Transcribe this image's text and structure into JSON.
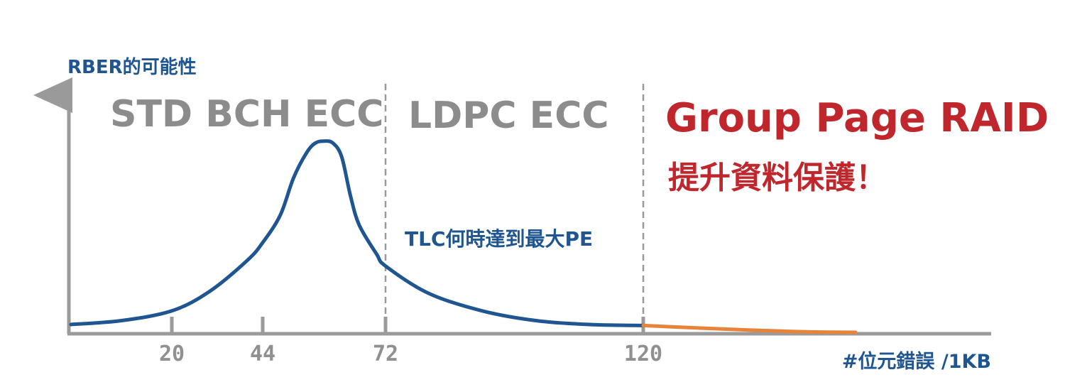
{
  "chart_data": {
    "type": "line",
    "ylabel": "RBER的可能性",
    "xlabel": "#位元錯誤 /1KB",
    "x_ticks": [
      {
        "value": 20,
        "label": "20"
      },
      {
        "value": 44,
        "label": "44"
      },
      {
        "value": 72,
        "label": "72"
      },
      {
        "value": 120,
        "label": "120"
      }
    ],
    "boundaries": [
      72,
      120
    ],
    "regions": [
      {
        "label": "STD BCH ECC",
        "color": "#8c8c8c"
      },
      {
        "label": "LDPC ECC",
        "color": "#8c8c8c"
      },
      {
        "label": "Group Page RAID",
        "sublabel": "提升資料保護！",
        "color": "#c0272d"
      }
    ],
    "annotation": "TLC何時達到最大PE",
    "series": [
      {
        "color": "#1f5590",
        "points": [
          [
            0,
            0.04
          ],
          [
            10,
            0.06
          ],
          [
            20,
            0.11
          ],
          [
            30,
            0.21
          ],
          [
            40,
            0.37
          ],
          [
            44,
            0.46
          ],
          [
            48,
            0.6
          ],
          [
            51,
            0.79
          ],
          [
            54,
            0.92
          ],
          [
            56,
            0.97
          ],
          [
            58,
            0.98
          ],
          [
            60,
            0.97
          ],
          [
            62,
            0.9
          ],
          [
            64,
            0.7
          ],
          [
            66,
            0.55
          ],
          [
            70,
            0.4
          ],
          [
            72,
            0.34
          ],
          [
            80,
            0.2
          ],
          [
            90,
            0.11
          ],
          [
            100,
            0.06
          ],
          [
            110,
            0.04
          ],
          [
            120,
            0.035
          ]
        ]
      },
      {
        "color": "#e8833a",
        "points": [
          [
            120,
            0.035
          ],
          [
            130,
            0.025
          ],
          [
            140,
            0.016
          ],
          [
            150,
            0.008
          ],
          [
            160,
            0.002
          ],
          [
            170,
            0.0
          ]
        ]
      }
    ],
    "xlim": [
      -1,
      175
    ],
    "ylim": [
      0,
      1
    ],
    "grid": false,
    "legend": "none"
  }
}
